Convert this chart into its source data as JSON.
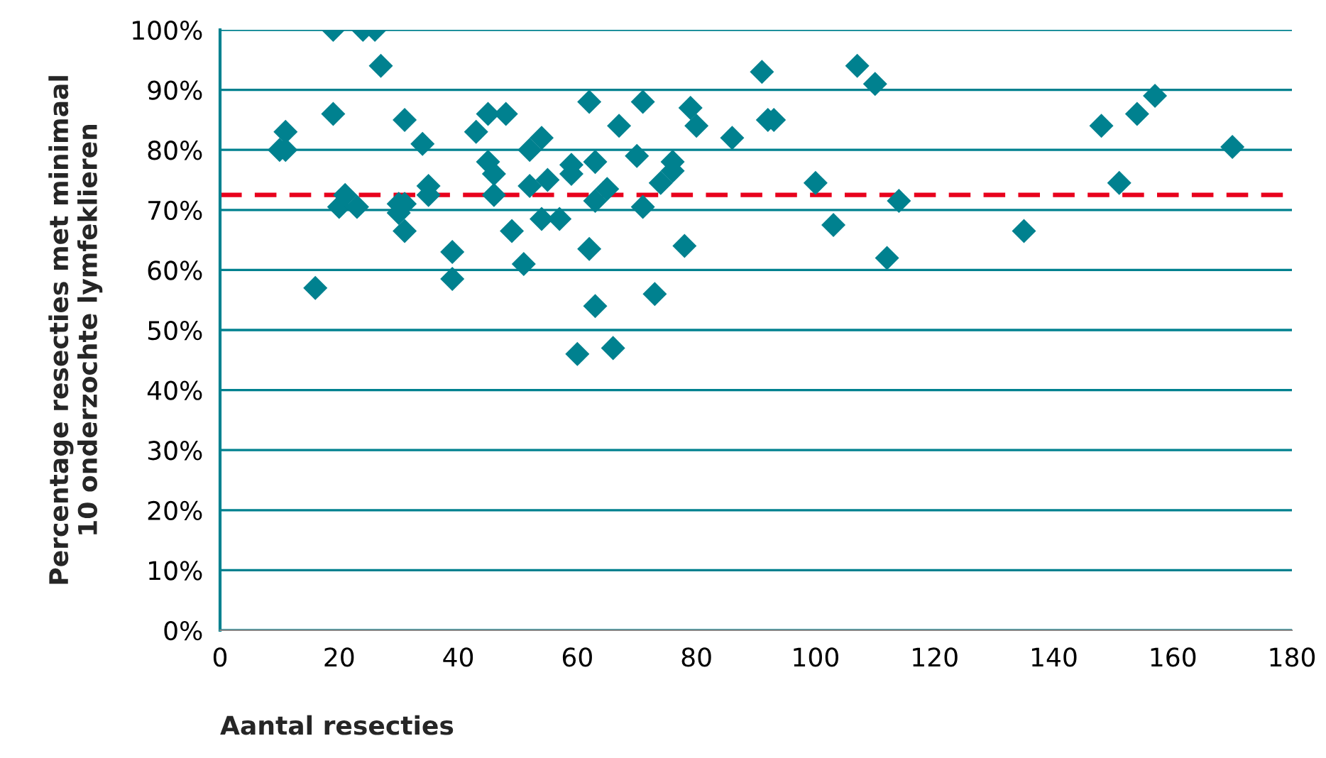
{
  "chart_data": {
    "type": "scatter",
    "xlabel": "Aantal resecties",
    "ylabel": "Percentage resecties met minimaal\n10 onderzochte lymfeklieren",
    "x": [
      10,
      11,
      11,
      16,
      19,
      19,
      20,
      21,
      23,
      24,
      26,
      27,
      30,
      30,
      31,
      31,
      31,
      34,
      35,
      35,
      39,
      39,
      43,
      45,
      45,
      46,
      46,
      48,
      49,
      51,
      52,
      52,
      54,
      54,
      55,
      57,
      59,
      59,
      60,
      62,
      62,
      63,
      63,
      63,
      65,
      66,
      67,
      70,
      71,
      71,
      73,
      74,
      76,
      76,
      78,
      79,
      80,
      86,
      91,
      92,
      93,
      100,
      103,
      107,
      110,
      112,
      114,
      135,
      148,
      151,
      154,
      157,
      170
    ],
    "series": [
      {
        "color": "#00818f",
        "values": [
          80,
          83,
          80,
          57,
          100,
          86,
          70.5,
          72.5,
          70.5,
          100,
          100,
          94,
          71,
          69.5,
          71,
          66.5,
          85,
          81,
          74,
          72.5,
          63,
          58.5,
          83,
          86,
          78,
          76,
          72.5,
          86,
          66.5,
          61,
          80,
          74,
          82,
          68.5,
          75,
          68.5,
          77.5,
          76,
          46,
          88,
          63.5,
          71.5,
          78,
          54,
          73.5,
          47,
          84,
          79,
          88,
          70.5,
          56,
          74.5,
          78,
          76.5,
          64,
          87,
          84,
          82,
          93,
          85,
          85,
          74.5,
          67.5,
          94,
          91,
          62,
          71.5,
          66.5,
          84,
          74.5,
          86,
          89,
          80.5
        ]
      }
    ],
    "xlim": [
      0,
      180
    ],
    "xticks": [
      0,
      20,
      40,
      60,
      80,
      100,
      120,
      140,
      160,
      180
    ],
    "ylim": [
      0,
      100
    ],
    "yticks": [
      {
        "value": 0,
        "label": "0%"
      },
      {
        "value": 10,
        "label": "10%"
      },
      {
        "value": 20,
        "label": "20%"
      },
      {
        "value": 30,
        "label": "30%"
      },
      {
        "value": 40,
        "label": "40%"
      },
      {
        "value": 50,
        "label": "50%"
      },
      {
        "value": 60,
        "label": "60%"
      },
      {
        "value": 70,
        "label": "70%"
      },
      {
        "value": 80,
        "label": "80%"
      },
      {
        "value": 90,
        "label": "90%"
      },
      {
        "value": 100,
        "label": "100%"
      }
    ],
    "grid": "y",
    "marker": "diamond",
    "ref_lines": [
      {
        "axis": "y",
        "value": 72.5,
        "color": "#e8001c",
        "line_style": "dashed"
      }
    ]
  }
}
